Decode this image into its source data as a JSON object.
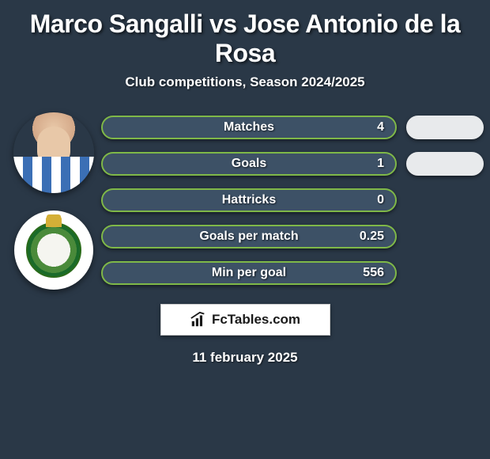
{
  "header": {
    "title": "Marco Sangalli vs Jose Antonio de la Rosa",
    "subtitle": "Club competitions, Season 2024/2025"
  },
  "style": {
    "background_color": "#2a3847",
    "pill_fill": "#3d5166",
    "pill_border": "#7fb848",
    "right_pill_fill": "#e8eaec",
    "text_color": "#ffffff",
    "title_fontsize": 32,
    "subtitle_fontsize": 17,
    "stat_fontsize": 16,
    "pill_height": 30,
    "pill_radius": 15
  },
  "stats": [
    {
      "label": "Matches",
      "value": "4",
      "has_right_pill": true
    },
    {
      "label": "Goals",
      "value": "1",
      "has_right_pill": true
    },
    {
      "label": "Hattricks",
      "value": "0",
      "has_right_pill": false
    },
    {
      "label": "Goals per match",
      "value": "0.25",
      "has_right_pill": false
    },
    {
      "label": "Min per goal",
      "value": "556",
      "has_right_pill": false
    }
  ],
  "branding": {
    "text": "FcTables.com"
  },
  "date": "11 february 2025"
}
